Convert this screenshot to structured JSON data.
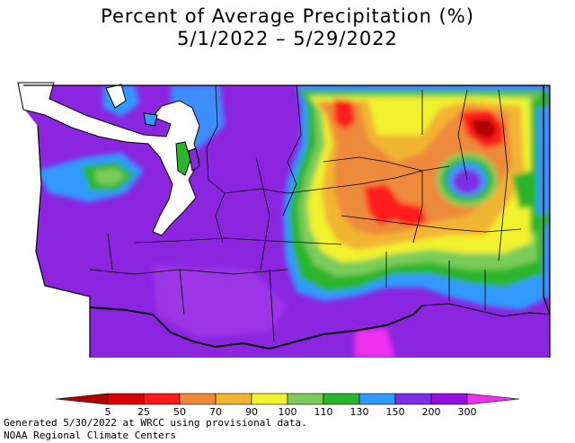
{
  "title": {
    "line1": "Percent of Average Precipitation (%)",
    "line2": "5/1/2022 – 5/29/2022"
  },
  "legend": {
    "labels": [
      "5",
      "25",
      "50",
      "70",
      "90",
      "100",
      "110",
      "130",
      "150",
      "200",
      "300"
    ],
    "colors": [
      "#b00000",
      "#d80000",
      "#ff1a1a",
      "#ee8a3a",
      "#f2b531",
      "#f2f22e",
      "#7ccc5c",
      "#2ab52a",
      "#3399ff",
      "#7a2ee6",
      "#9410e0",
      "#f030f0"
    ]
  },
  "map": {
    "region": "Washington State",
    "colors": {
      "water": "#ffffff",
      "boundary": "#000000",
      "below_average": "#ee8a3a",
      "well_below": "#ff1a1a",
      "near_average": "#f2b531",
      "above_110": "#7ccc5c",
      "above_130": "#2ab52a",
      "above_150": "#3399ff",
      "above_200": "#7a2ee6",
      "above_300": "#f030f0"
    }
  },
  "footer": {
    "line1": "Generated 5/30/2022 at WRCC using provisional data.",
    "line2": "NOAA Regional Climate Centers"
  }
}
